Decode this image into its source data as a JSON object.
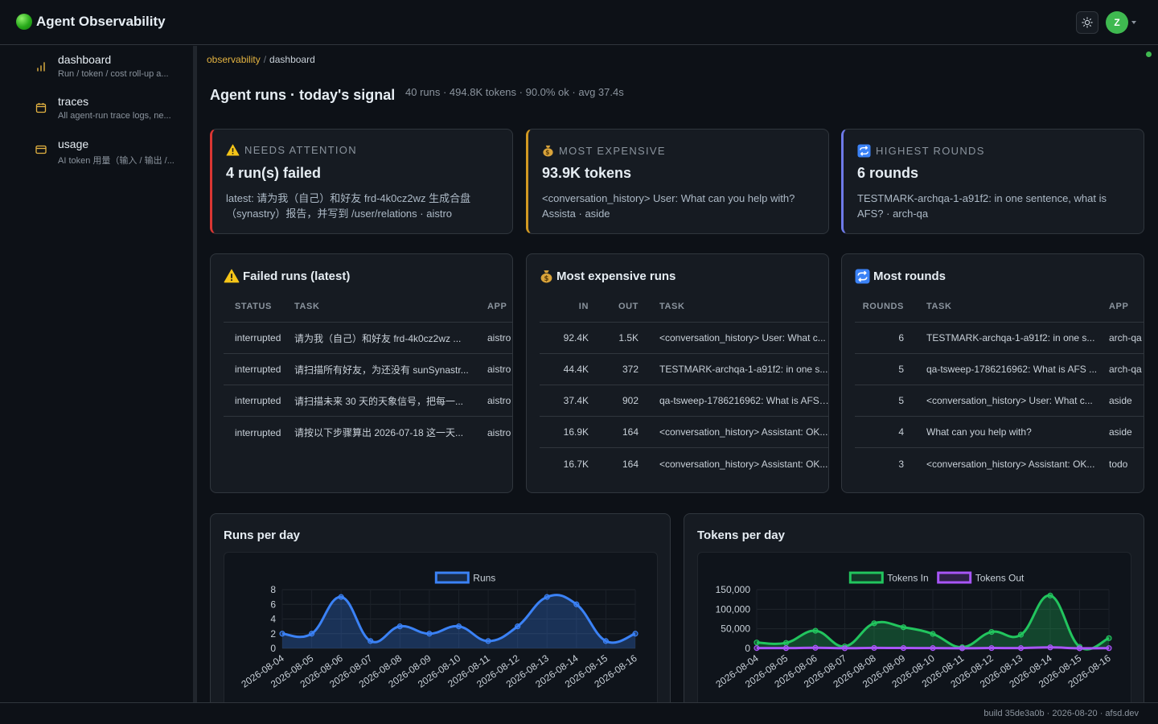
{
  "app": {
    "title": "Agent Observability"
  },
  "user": {
    "avatar_letter": "Z"
  },
  "sidebar": {
    "items": [
      {
        "label": "dashboard",
        "desc": "Run / token / cost roll-up a..."
      },
      {
        "label": "traces",
        "desc": "All agent-run trace logs, ne..."
      },
      {
        "label": "usage",
        "desc": "AI token 用量（输入 / 输出 /..."
      }
    ]
  },
  "breadcrumb": {
    "root": "observability",
    "sep": "/",
    "current": "dashboard"
  },
  "header": {
    "title": "Agent runs · today's signal",
    "summary": "40 runs · 494.8K tokens · 90.0% ok · avg 37.4s"
  },
  "signals": {
    "attention": {
      "label": "NEEDS ATTENTION",
      "value": "4 run(s) failed",
      "detail": "latest: 请为我（自己）和好友 frd-4k0cz2wz 生成合盘（synastry）报告，并写到 /user/relations · aistro"
    },
    "expensive": {
      "label": "MOST EXPENSIVE",
      "value": "93.9K tokens",
      "detail": "<conversation_history> User: What can you help with? Assista · aside"
    },
    "rounds": {
      "label": "HIGHEST ROUNDS",
      "value": "6 rounds",
      "detail": "TESTMARK-archqa-1-a91f2: in one sentence, what is AFS? · arch-qa"
    }
  },
  "failed_table": {
    "title": "Failed runs (latest)",
    "columns": [
      "STATUS",
      "TASK",
      "APP"
    ],
    "rows": [
      [
        "interrupted",
        "请为我（自己）和好友 frd-4k0cz2wz ...",
        "aistro"
      ],
      [
        "interrupted",
        "请扫描所有好友，为还没有 sunSynastr...",
        "aistro"
      ],
      [
        "interrupted",
        "请扫描未来 30 天的天象信号，把每一...",
        "aistro"
      ],
      [
        "interrupted",
        "请按以下步骤算出 2026-07-18 这一天...",
        "aistro"
      ]
    ]
  },
  "expensive_table": {
    "title": "Most expensive runs",
    "columns": [
      "IN",
      "OUT",
      "TASK"
    ],
    "rows": [
      [
        "92.4K",
        "1.5K",
        "<conversation_history> User: What c..."
      ],
      [
        "44.4K",
        "372",
        "TESTMARK-archqa-1-a91f2: in one s..."
      ],
      [
        "37.4K",
        "902",
        "qa-tsweep-1786216962: What is AFS ..."
      ],
      [
        "16.9K",
        "164",
        "<conversation_history> Assistant: OK..."
      ],
      [
        "16.7K",
        "164",
        "<conversation_history> Assistant: OK..."
      ]
    ]
  },
  "rounds_table": {
    "title": "Most rounds",
    "columns": [
      "ROUNDS",
      "TASK",
      "APP"
    ],
    "rows": [
      [
        "6",
        "TESTMARK-archqa-1-a91f2: in one s...",
        "arch-qa"
      ],
      [
        "5",
        "qa-tsweep-1786216962: What is AFS ...",
        "arch-qa"
      ],
      [
        "5",
        "<conversation_history> User: What c...",
        "aside"
      ],
      [
        "4",
        "What can you help with?",
        "aside"
      ],
      [
        "3",
        "<conversation_history> Assistant: OK...",
        "todo"
      ]
    ]
  },
  "charts": {
    "runs_title": "Runs per day",
    "tokens_title": "Tokens per day"
  },
  "chart_data": [
    {
      "type": "area",
      "title": "",
      "x": [
        "2026-08-04",
        "2026-08-05",
        "2026-08-06",
        "2026-08-07",
        "2026-08-08",
        "2026-08-09",
        "2026-08-10",
        "2026-08-11",
        "2026-08-12",
        "2026-08-13",
        "2026-08-14",
        "2026-08-15",
        "2026-08-16"
      ],
      "series": [
        {
          "name": "Runs",
          "values": [
            2,
            2,
            7,
            1,
            3,
            2,
            3,
            1,
            3,
            7,
            6,
            1,
            2
          ],
          "color": "#3b82f6"
        }
      ],
      "ylim": [
        0,
        8
      ],
      "yticks": [
        "8",
        "6",
        "4",
        "2",
        "0"
      ],
      "legend": "top-center",
      "grid": true
    },
    {
      "type": "area",
      "title": "",
      "x": [
        "2026-08-04",
        "2026-08-05",
        "2026-08-06",
        "2026-08-07",
        "2026-08-08",
        "2026-08-09",
        "2026-08-10",
        "2026-08-11",
        "2026-08-12",
        "2026-08-13",
        "2026-08-14",
        "2026-08-15",
        "2026-08-16"
      ],
      "series": [
        {
          "name": "Tokens In",
          "values": [
            15000,
            14000,
            45000,
            5000,
            64000,
            54000,
            37000,
            3000,
            42000,
            35000,
            135000,
            4000,
            26000
          ],
          "color": "#22c55e"
        },
        {
          "name": "Tokens Out",
          "values": [
            800,
            700,
            1500,
            400,
            1200,
            900,
            800,
            300,
            900,
            800,
            2500,
            300,
            600
          ],
          "color": "#a855f7"
        }
      ],
      "ylim": [
        0,
        150000
      ],
      "yticks": [
        "150,000",
        "100,000",
        "50,000",
        "0"
      ],
      "legend": "top-center",
      "grid": true
    }
  ],
  "footer": {
    "text": "build 35de3a0b · 2026-08-20 · afsd.dev"
  }
}
